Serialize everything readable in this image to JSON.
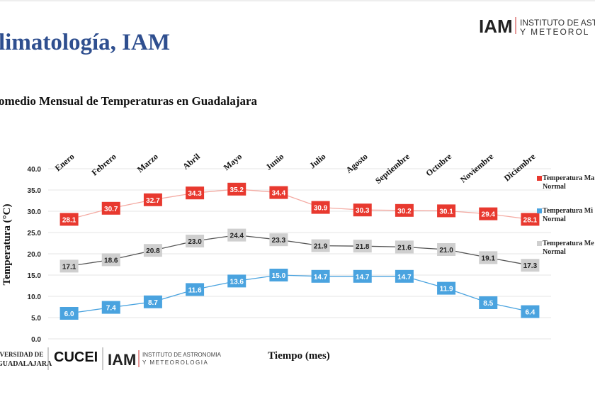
{
  "slide": {
    "title": "limatología, IAM",
    "logo_top": "IAM",
    "logo_top_line1": "INSTITUTO DE ASTRONO",
    "logo_top_line2": "Y METEOROL",
    "footer_udg_line1": "IVERSIDAD DE",
    "footer_udg_line2": "GUADALAJARA",
    "footer_cucei": "CUCEI",
    "footer_iam": "IAM",
    "footer_iam_line1": "INSTITUTO DE ASTRONOMIA",
    "footer_iam_line2": "Y METEOROLOGIA"
  },
  "chart_data": {
    "type": "line",
    "title": "omedio Mensual de Temperaturas en Guadalajara",
    "x_label": "Tiempo (mes)",
    "y_label": "Temperatura  (°C)",
    "categories": [
      "Enero",
      "Febrero",
      "Marzo",
      "Abril",
      "Mayo",
      "Junio",
      "Julio",
      "Agosto",
      "Septiembre",
      "Octubre",
      "Noviembre",
      "Diciembre"
    ],
    "series": [
      {
        "name": "Temperatura Ma Normal",
        "color": "#e8392f",
        "line_color": "#f4aaa2",
        "text_color": "#ffffff",
        "values": [
          28.1,
          30.7,
          32.7,
          34.3,
          35.2,
          34.4,
          30.9,
          30.3,
          30.2,
          30.1,
          29.4,
          28.1
        ],
        "value_labels": [
          "28.1",
          "30.7",
          "32.7",
          "34.3",
          "35.2",
          "34.4",
          "30.9",
          "30.3",
          "30.2",
          "30.1",
          "29.4",
          "28.1"
        ]
      },
      {
        "name": "Temperatura Mi Normal",
        "color": "#4aa3df",
        "line_color": "#4aa3df",
        "text_color": "#ffffff",
        "values": [
          6.0,
          7.4,
          8.7,
          11.6,
          13.6,
          15.0,
          14.7,
          14.7,
          14.7,
          11.9,
          8.5,
          6.4
        ],
        "value_labels": [
          "6.0",
          "7.4",
          "8.7",
          "11.6",
          "13.6",
          "15.0",
          "14.7",
          "14.7",
          "14.7",
          "11.9",
          "8.5",
          "6.4"
        ]
      },
      {
        "name": "Temperatura Me Normal",
        "color": "#cfcfcf",
        "line_color": "#555555",
        "text_color": "#222222",
        "values": [
          17.1,
          18.6,
          20.8,
          23.0,
          24.4,
          23.3,
          21.9,
          21.8,
          21.6,
          21.0,
          19.1,
          17.3
        ],
        "value_labels": [
          "17.1",
          "18.6",
          "20.8",
          "23.0",
          "24.4",
          "23.3",
          "21.9",
          "21.8",
          "21.6",
          "21.0",
          "19.1",
          "17.3"
        ]
      }
    ],
    "ylim": [
      0,
      40
    ],
    "yticks": [
      {
        "value": 0,
        "label": "0.0"
      },
      {
        "value": 5,
        "label": "5.0"
      },
      {
        "value": 10,
        "label": "10.0"
      },
      {
        "value": 15,
        "label": "15.0"
      },
      {
        "value": 20,
        "label": "20.0"
      },
      {
        "value": 25,
        "label": "25.0"
      },
      {
        "value": 30,
        "label": "30.0"
      },
      {
        "value": 35,
        "label": "35.0"
      },
      {
        "value": 40,
        "label": "40.0"
      }
    ],
    "grid": true
  }
}
